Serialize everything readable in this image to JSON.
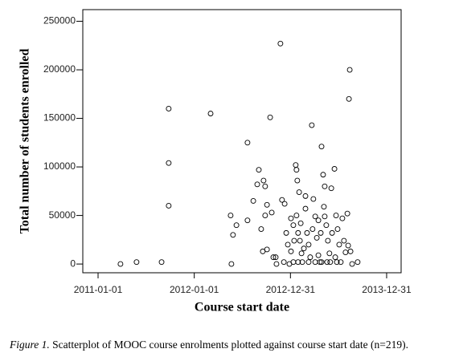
{
  "chart_data": {
    "type": "scatter",
    "xlabel": "Course start date",
    "ylabel": "Total number of students enrolled",
    "caption_label": "Figure 1.",
    "caption_text": "Scatterplot of MOOC course enrolments plotted against course start date (n=219).",
    "x": [
      "2011-03-27",
      "2011-05-27",
      "2011-08-30",
      "2011-09-26",
      "2011-09-26",
      "2011-09-26",
      "2012-03-03",
      "2012-05-18",
      "2012-05-27",
      "2012-05-21",
      "2012-06-09",
      "2012-07-21",
      "2012-07-21",
      "2012-08-12",
      "2012-09-02",
      "2012-08-27",
      "2012-09-11",
      "2012-09-20",
      "2012-09-26",
      "2012-09-26",
      "2012-10-15",
      "2012-10-21",
      "2012-10-03",
      "2012-10-27",
      "2012-11-05",
      "2012-11-08",
      "2012-10-03",
      "2012-09-17",
      "2012-11-23",
      "2012-11-29",
      "2012-12-09",
      "2013-01-02",
      "2013-01-11",
      "2013-01-20",
      "2013-01-23",
      "2013-01-26",
      "2013-02-02",
      "2013-01-23",
      "2013-01-29",
      "2013-02-05",
      "2013-02-11",
      "2013-02-14",
      "2013-01-11",
      "2012-12-27",
      "2013-02-26",
      "2013-03-04",
      "2013-03-10",
      "2013-03-16",
      "2013-03-22",
      "2013-03-28",
      "2013-04-04",
      "2013-04-10",
      "2013-04-16",
      "2013-04-22",
      "2013-04-28",
      "2013-05-04",
      "2013-05-10",
      "2013-05-07",
      "2013-05-16",
      "2013-05-22",
      "2013-05-28",
      "2013-05-31",
      "2013-06-04",
      "2013-06-16",
      "2013-06-22",
      "2013-06-28",
      "2013-07-04",
      "2013-07-10",
      "2013-07-16",
      "2013-07-22",
      "2013-07-28",
      "2013-08-04",
      "2013-08-07",
      "2013-08-13",
      "2013-08-10",
      "2013-08-16",
      "2013-08-22",
      "2013-09-12",
      "2012-12-15",
      "2012-12-21",
      "2013-02-20",
      "2013-03-25",
      "2013-04-25",
      "2013-06-07",
      "2013-06-19",
      "2013-04-28",
      "2013-04-04",
      "2013-03-10",
      "2013-05-19",
      "2013-06-25",
      "2013-01-29",
      "2012-12-06",
      "2013-01-14",
      "2013-01-02",
      "2013-04-16",
      "2013-05-10",
      "2013-02-26",
      "2013-02-08"
    ],
    "values": [
      0,
      2000,
      2000,
      160000,
      104000,
      60000,
      155000,
      50000,
      30000,
      0,
      40000,
      125000,
      45000,
      65000,
      97000,
      82000,
      36000,
      86000,
      80000,
      50000,
      151000,
      53000,
      61000,
      7000,
      7000,
      0,
      15000,
      13000,
      227000,
      66000,
      62000,
      47000,
      40000,
      102000,
      97000,
      86000,
      74000,
      50000,
      32000,
      24000,
      11000,
      2000,
      2000,
      0,
      57000,
      32000,
      20000,
      7000,
      143000,
      67000,
      49000,
      27000,
      9000,
      2000,
      121000,
      92000,
      80000,
      59000,
      40000,
      24000,
      11000,
      2000,
      78000,
      98000,
      50000,
      36000,
      20000,
      2000,
      47000,
      24000,
      12000,
      52000,
      19000,
      200000,
      170000,
      13000,
      0,
      2000,
      32000,
      20000,
      16000,
      36000,
      32000,
      32000,
      7000,
      2000,
      2000,
      2000,
      2000,
      2000,
      2000,
      2000,
      24000,
      13000,
      45000,
      49000,
      70000,
      42000
    ],
    "xlim": [
      "2010-11-04",
      "2014-02-24"
    ],
    "xticks": [
      "2011-01-01",
      "2012-01-01",
      "2012-12-31",
      "2013-12-31"
    ],
    "ylim": [
      -9000,
      262000
    ],
    "yticks": [
      0,
      50000,
      100000,
      150000,
      200000,
      250000
    ],
    "color": "#000000"
  }
}
